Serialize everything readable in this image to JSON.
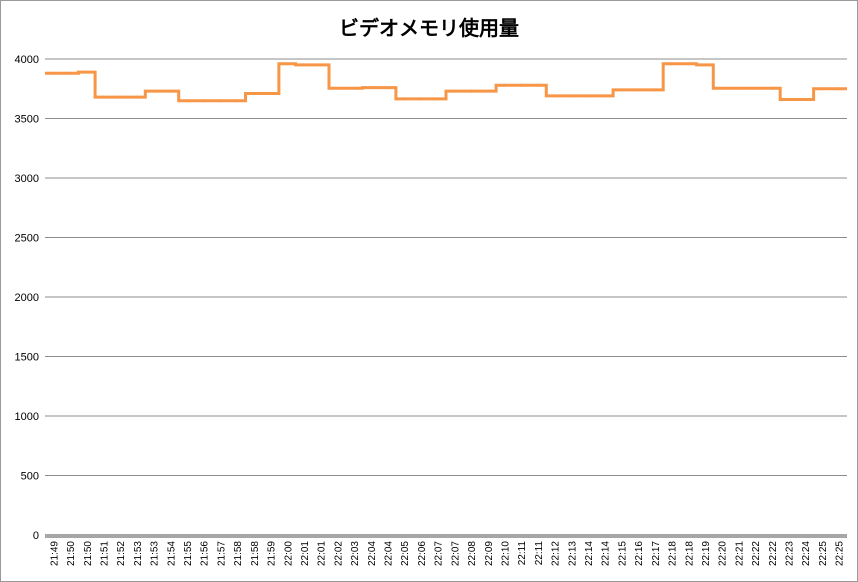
{
  "chart_data": {
    "type": "line",
    "title": "ビデオメモリ使用量",
    "xlabel": "",
    "ylabel": "",
    "ylim": [
      0,
      4000
    ],
    "yticks": [
      0,
      500,
      1000,
      1500,
      2000,
      2500,
      3000,
      3500,
      4000
    ],
    "grid": true,
    "legend": "none",
    "colors": {
      "series": "#F79646",
      "grid": "#8c8c8c",
      "axis": "#a6a6a6"
    },
    "categories": [
      "21:49",
      "21:50",
      "21:50",
      "21:51",
      "21:52",
      "21:53",
      "21:53",
      "21:54",
      "21:55",
      "21:56",
      "21:57",
      "21:58",
      "21:58",
      "21:59",
      "22:00",
      "22:01",
      "22:01",
      "22:02",
      "22:03",
      "22:04",
      "22:04",
      "22:05",
      "22:06",
      "22:07",
      "22:07",
      "22:08",
      "22:09",
      "22:10",
      "22:11",
      "22:11",
      "22:12",
      "22:13",
      "22:14",
      "22:14",
      "22:15",
      "22:16",
      "22:17",
      "22:18",
      "22:18",
      "22:19",
      "22:20",
      "22:21",
      "22:22",
      "22:22",
      "22:23",
      "22:24",
      "22:25",
      "22:25"
    ],
    "series": [
      {
        "values": [
          3880,
          3880,
          3890,
          3680,
          3680,
          3680,
          3730,
          3730,
          3650,
          3650,
          3650,
          3650,
          3710,
          3710,
          3960,
          3950,
          3950,
          3755,
          3755,
          3760,
          3760,
          3665,
          3665,
          3665,
          3730,
          3730,
          3730,
          3780,
          3780,
          3780,
          3690,
          3690,
          3690,
          3690,
          3740,
          3740,
          3740,
          3960,
          3960,
          3950,
          3755,
          3755,
          3755,
          3755,
          3660,
          3660,
          3750,
          3750
        ]
      }
    ]
  }
}
